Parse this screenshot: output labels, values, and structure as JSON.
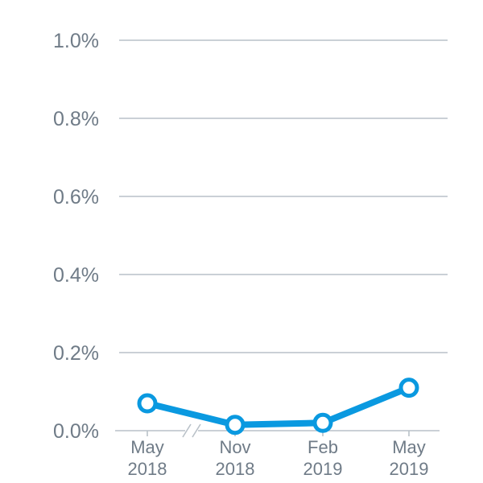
{
  "chart_data": {
    "type": "line",
    "title": "",
    "xlabel": "",
    "ylabel": "",
    "x": [
      "May 2018",
      "Nov 2018",
      "Feb 2019",
      "May 2019"
    ],
    "x_tick_labels": [
      [
        "May",
        "2018"
      ],
      [
        "Nov",
        "2018"
      ],
      [
        "Feb",
        "2019"
      ],
      [
        "May",
        "2019"
      ]
    ],
    "y_ticks": [
      0.0,
      0.2,
      0.4,
      0.6,
      0.8,
      1.0
    ],
    "y_tick_labels": [
      "0.0%",
      "0.2%",
      "0.4%",
      "0.6%",
      "0.8%",
      "1.0%"
    ],
    "ylim": [
      0,
      1.0
    ],
    "y_unit": "%",
    "grid": true,
    "axis_break": "between May 2018 and Nov 2018",
    "series": [
      {
        "values": [
          0.07,
          0.015,
          0.02,
          0.11
        ],
        "color": "#0a99e0"
      }
    ]
  }
}
